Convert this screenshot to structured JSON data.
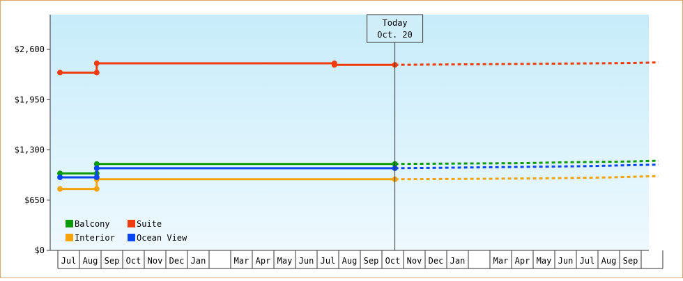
{
  "chart_data": {
    "type": "line",
    "title": "",
    "xlabel": "",
    "ylabel": "",
    "ylim": [
      0,
      3050
    ],
    "yticks": [
      {
        "value": 0,
        "label": "$0"
      },
      {
        "value": 650,
        "label": "$650"
      },
      {
        "value": 1300,
        "label": "$1,300"
      },
      {
        "value": 1950,
        "label": "$1,950"
      },
      {
        "value": 2600,
        "label": "$2,600"
      }
    ],
    "x_ticks": [
      "Jul",
      "Aug",
      "Sep",
      "Oct",
      "Nov",
      "Dec",
      "Jan",
      "",
      "Mar",
      "Apr",
      "May",
      "Jun",
      "Jul",
      "Aug",
      "Sep",
      "Oct",
      "Nov",
      "Dec",
      "Jan",
      "",
      "Mar",
      "Apr",
      "May",
      "Jun",
      "Jul",
      "Aug",
      "Sep",
      ""
    ],
    "today": {
      "line1": "Today",
      "line2": "Oct. 20",
      "x": 15.1
    },
    "legend": {
      "position": "bottom-left",
      "entries": [
        {
          "label": "Balcony",
          "color": "#0a9a0a"
        },
        {
          "label": "Suite",
          "color": "#f03c0c"
        },
        {
          "label": "Interior",
          "color": "#f4a30c"
        },
        {
          "label": "Ocean View",
          "color": "#0a46f0"
        }
      ]
    },
    "series": [
      {
        "name": "Balcony",
        "color": "#0a9a0a",
        "actual": [
          [
            -0.4,
            996
          ],
          [
            1.3,
            996
          ],
          [
            1.3,
            1118
          ],
          [
            15.1,
            1118
          ]
        ],
        "markers": [
          [
            -0.4,
            996
          ],
          [
            1.3,
            996
          ],
          [
            1.3,
            1118
          ],
          [
            15.1,
            1118
          ]
        ],
        "forecast": [
          [
            15.1,
            1118
          ],
          [
            17.0,
            1122
          ],
          [
            21.0,
            1128
          ],
          [
            23.0,
            1140
          ],
          [
            26.0,
            1150
          ],
          [
            27.3,
            1160
          ]
        ]
      },
      {
        "name": "Suite",
        "color": "#f03c0c",
        "actual": [
          [
            -0.4,
            2300
          ],
          [
            1.3,
            2300
          ],
          [
            1.3,
            2420
          ],
          [
            12.3,
            2420
          ],
          [
            12.3,
            2400
          ],
          [
            15.1,
            2400
          ]
        ],
        "markers": [
          [
            -0.4,
            2300
          ],
          [
            1.3,
            2300
          ],
          [
            1.3,
            2420
          ],
          [
            12.3,
            2420
          ],
          [
            12.3,
            2400
          ],
          [
            15.1,
            2400
          ]
        ],
        "forecast": [
          [
            15.1,
            2400
          ],
          [
            17.0,
            2404
          ],
          [
            22.0,
            2414
          ],
          [
            26.0,
            2424
          ],
          [
            27.3,
            2432
          ]
        ]
      },
      {
        "name": "Interior",
        "color": "#f4a30c",
        "actual": [
          [
            -0.4,
            795
          ],
          [
            1.3,
            795
          ],
          [
            1.3,
            920
          ],
          [
            15.1,
            920
          ]
        ],
        "markers": [
          [
            -0.4,
            795
          ],
          [
            1.3,
            795
          ],
          [
            1.3,
            920
          ],
          [
            15.1,
            920
          ]
        ],
        "forecast": [
          [
            15.1,
            920
          ],
          [
            18.0,
            924
          ],
          [
            22.0,
            932
          ],
          [
            25.0,
            944
          ],
          [
            27.3,
            962
          ]
        ]
      },
      {
        "name": "Ocean View",
        "color": "#0a46f0",
        "actual": [
          [
            -0.4,
            945
          ],
          [
            1.3,
            945
          ],
          [
            1.3,
            1063
          ],
          [
            15.1,
            1063
          ]
        ],
        "markers": [
          [
            -0.4,
            945
          ],
          [
            1.3,
            945
          ],
          [
            1.3,
            1063
          ],
          [
            15.1,
            1063
          ]
        ],
        "forecast": [
          [
            15.1,
            1063
          ],
          [
            17.0,
            1068
          ],
          [
            21.0,
            1080
          ],
          [
            24.0,
            1090
          ],
          [
            27.3,
            1110
          ]
        ]
      }
    ]
  }
}
